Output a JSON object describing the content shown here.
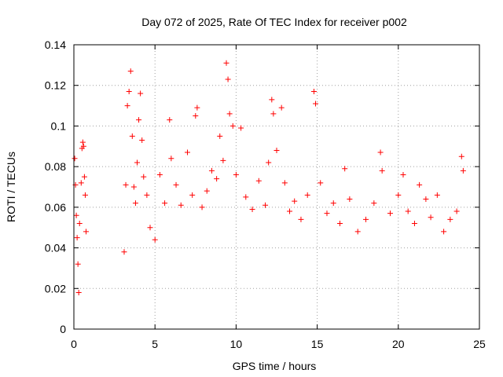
{
  "chart_data": {
    "type": "scatter",
    "title": "Day 072 of 2025, Rate Of TEC Index for receiver p002",
    "xlabel": "GPS time / hours",
    "ylabel": "ROTI / TECUs",
    "xlim": [
      0,
      25
    ],
    "ylim": [
      0,
      0.14
    ],
    "xticks": [
      0,
      5,
      10,
      15,
      20,
      25
    ],
    "xtick_labels": [
      "0",
      "5",
      "10",
      "15",
      "20",
      "25"
    ],
    "yticks": [
      0,
      0.02,
      0.04,
      0.06,
      0.08,
      0.1,
      0.12,
      0.14
    ],
    "ytick_labels": [
      "0",
      "0.02",
      "0.04",
      "0.06",
      "0.08",
      "0.1",
      "0.12",
      "0.14"
    ],
    "grid": true,
    "marker": "+",
    "series": [
      {
        "color": "#ff0000",
        "points": [
          [
            0.05,
            0.084
          ],
          [
            0.1,
            0.071
          ],
          [
            0.15,
            0.056
          ],
          [
            0.2,
            0.045
          ],
          [
            0.25,
            0.032
          ],
          [
            0.3,
            0.018
          ],
          [
            0.35,
            0.052
          ],
          [
            0.45,
            0.072
          ],
          [
            0.5,
            0.089
          ],
          [
            0.55,
            0.092
          ],
          [
            0.6,
            0.09
          ],
          [
            0.65,
            0.075
          ],
          [
            0.7,
            0.066
          ],
          [
            0.75,
            0.048
          ],
          [
            3.1,
            0.038
          ],
          [
            3.2,
            0.071
          ],
          [
            3.3,
            0.11
          ],
          [
            3.4,
            0.117
          ],
          [
            3.5,
            0.127
          ],
          [
            3.6,
            0.095
          ],
          [
            3.7,
            0.07
          ],
          [
            3.8,
            0.062
          ],
          [
            3.9,
            0.082
          ],
          [
            4.0,
            0.103
          ],
          [
            4.1,
            0.116
          ],
          [
            4.2,
            0.093
          ],
          [
            4.3,
            0.075
          ],
          [
            4.5,
            0.066
          ],
          [
            4.7,
            0.05
          ],
          [
            5.0,
            0.044
          ],
          [
            5.3,
            0.076
          ],
          [
            5.6,
            0.062
          ],
          [
            5.9,
            0.103
          ],
          [
            6.0,
            0.084
          ],
          [
            6.3,
            0.071
          ],
          [
            6.6,
            0.061
          ],
          [
            7.0,
            0.087
          ],
          [
            7.3,
            0.066
          ],
          [
            7.5,
            0.105
          ],
          [
            7.6,
            0.109
          ],
          [
            7.9,
            0.06
          ],
          [
            8.2,
            0.068
          ],
          [
            8.5,
            0.078
          ],
          [
            8.8,
            0.074
          ],
          [
            9.0,
            0.095
          ],
          [
            9.2,
            0.083
          ],
          [
            9.4,
            0.131
          ],
          [
            9.5,
            0.123
          ],
          [
            9.6,
            0.106
          ],
          [
            9.8,
            0.1
          ],
          [
            10.0,
            0.076
          ],
          [
            10.3,
            0.099
          ],
          [
            10.6,
            0.065
          ],
          [
            11.0,
            0.059
          ],
          [
            11.4,
            0.073
          ],
          [
            11.8,
            0.061
          ],
          [
            12.0,
            0.082
          ],
          [
            12.2,
            0.113
          ],
          [
            12.3,
            0.106
          ],
          [
            12.5,
            0.088
          ],
          [
            12.8,
            0.109
          ],
          [
            13.0,
            0.072
          ],
          [
            13.3,
            0.058
          ],
          [
            13.6,
            0.063
          ],
          [
            14.0,
            0.054
          ],
          [
            14.4,
            0.066
          ],
          [
            14.8,
            0.117
          ],
          [
            14.9,
            0.111
          ],
          [
            15.2,
            0.072
          ],
          [
            15.6,
            0.057
          ],
          [
            16.0,
            0.062
          ],
          [
            16.4,
            0.052
          ],
          [
            16.7,
            0.079
          ],
          [
            17.0,
            0.064
          ],
          [
            17.5,
            0.048
          ],
          [
            18.0,
            0.054
          ],
          [
            18.5,
            0.062
          ],
          [
            18.9,
            0.087
          ],
          [
            19.0,
            0.078
          ],
          [
            19.5,
            0.057
          ],
          [
            20.0,
            0.066
          ],
          [
            20.3,
            0.076
          ],
          [
            20.6,
            0.058
          ],
          [
            21.0,
            0.052
          ],
          [
            21.3,
            0.071
          ],
          [
            21.7,
            0.064
          ],
          [
            22.0,
            0.055
          ],
          [
            22.4,
            0.066
          ],
          [
            22.8,
            0.048
          ],
          [
            23.2,
            0.054
          ],
          [
            23.6,
            0.058
          ],
          [
            23.9,
            0.085
          ],
          [
            24.0,
            0.078
          ]
        ]
      }
    ]
  }
}
